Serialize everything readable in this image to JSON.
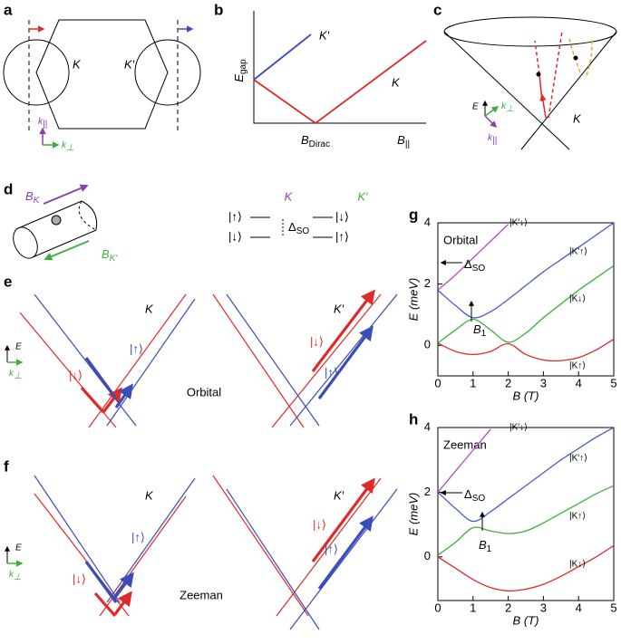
{
  "panels": {
    "a": {
      "letter": "a",
      "K": "K",
      "Kp": "K′",
      "k_par": {
        "main": "k",
        "sub": "||"
      },
      "k_perp": {
        "main": "k",
        "sub": "⊥"
      }
    },
    "b": {
      "letter": "b",
      "ylabel": {
        "main": "E",
        "sub": "gap"
      },
      "Kp": "K′",
      "K": "K",
      "b_dirac": {
        "main": "B",
        "sub": "Dirac"
      },
      "b_par": {
        "main": "B",
        "sub": "||"
      }
    },
    "c": {
      "letter": "c",
      "E": "E",
      "k_perp": {
        "main": "k",
        "sub": "⊥"
      },
      "k_par": {
        "main": "k",
        "sub": "||"
      },
      "K": "K"
    },
    "d": {
      "letter": "d",
      "b_k": {
        "main": "B",
        "sub": "K"
      },
      "b_kp": {
        "main": "B",
        "sub": "K′"
      },
      "K": "K",
      "Kp": "K′",
      "up_left": "|↑⟩",
      "down_left": "|↓⟩",
      "down_right": "|↓⟩",
      "up_right": "|↑⟩",
      "delta": {
        "main": "Δ",
        "sub": "SO"
      }
    },
    "e": {
      "letter": "e",
      "K": "K",
      "Kp": "K′",
      "up_left": "|↑⟩",
      "down_left": "|↓⟩",
      "down_right": "|↓⟩",
      "up_right": "|↑⟩",
      "E": "E",
      "k_perp": {
        "main": "k",
        "sub": "⊥"
      },
      "mode": "Orbital"
    },
    "f": {
      "letter": "f",
      "K": "K",
      "Kp": "K′",
      "up_left": "|↑⟩",
      "down_left": "|↓⟩",
      "down_right": "|↓⟩",
      "up_right": "|↑⟩",
      "E": "E",
      "k_perp": {
        "main": "k",
        "sub": "⊥"
      },
      "mode": "Zeeman"
    }
  },
  "chart_data": [
    {
      "type": "line",
      "panel_label": "g",
      "title": "Orbital",
      "xlabel": "B (T)",
      "ylabel": "E (meV)",
      "x": [
        0,
        0.5,
        1,
        1.5,
        2,
        2.5,
        3,
        3.5,
        4,
        4.5,
        5
      ],
      "xlim": [
        0,
        5
      ],
      "xticks": [
        0,
        1,
        2,
        3,
        4,
        5
      ],
      "ylim": [
        -1,
        4
      ],
      "yticks": [
        0,
        2,
        4
      ],
      "delta_label": {
        "main": "Δ",
        "sub": "SO"
      },
      "b1_label": {
        "main": "B",
        "sub": "1"
      },
      "series": [
        {
          "name": "|K′↓⟩",
          "color": "#b04fb8",
          "values": [
            1.8,
            2.3,
            2.85,
            3.4,
            3.95,
            null,
            null,
            null,
            null,
            null,
            null
          ]
        },
        {
          "name": "|K′↑⟩",
          "color": "#4a5cc8",
          "values": [
            1.8,
            1.3,
            0.9,
            1.1,
            1.5,
            1.95,
            2.4,
            2.8,
            3.2,
            3.6,
            4
          ]
        },
        {
          "name": "|K↓⟩",
          "color": "#3fae3f",
          "values": [
            0.07,
            0.5,
            0.85,
            0.5,
            0.1,
            0.4,
            0.9,
            1.35,
            1.8,
            2.2,
            2.6
          ]
        },
        {
          "name": "|K↑⟩",
          "color": "#e02a2a",
          "values": [
            0.07,
            -0.2,
            -0.3,
            -0.2,
            0.05,
            -0.3,
            -0.48,
            -0.5,
            -0.4,
            -0.15,
            0.2
          ]
        }
      ]
    },
    {
      "type": "line",
      "panel_label": "h",
      "title": "Zeeman",
      "xlabel": "B (T)",
      "ylabel": "E (meV)",
      "x": [
        0,
        0.5,
        1,
        1.5,
        2,
        2.5,
        3,
        3.5,
        4,
        4.5,
        5
      ],
      "xlim": [
        0,
        5
      ],
      "xticks": [
        0,
        1,
        2,
        3,
        4,
        5
      ],
      "ylim": [
        -1.35,
        4
      ],
      "yticks": [
        0,
        2,
        4
      ],
      "delta_label": {
        "main": "Δ",
        "sub": "SO"
      },
      "b1_label": {
        "main": "B",
        "sub": "1"
      },
      "series": [
        {
          "name": "|K′↓⟩",
          "color": "#b04fb8",
          "values": [
            2,
            2.65,
            3.3,
            3.95,
            null,
            null,
            null,
            null,
            null,
            null,
            null
          ]
        },
        {
          "name": "|K′↑⟩",
          "color": "#4a5cc8",
          "values": [
            2,
            1.5,
            1.1,
            1.4,
            1.8,
            2.2,
            2.6,
            3,
            3.35,
            3.7,
            4
          ]
        },
        {
          "name": "|K↑⟩",
          "color": "#3fae3f",
          "values": [
            0.05,
            0.45,
            0.9,
            0.8,
            0.72,
            0.8,
            1.05,
            1.35,
            1.65,
            1.95,
            2.2
          ]
        },
        {
          "name": "|K↓⟩",
          "color": "#e02a2a",
          "values": [
            0,
            -0.35,
            -0.7,
            -0.95,
            -1.05,
            -1,
            -0.85,
            -0.6,
            -0.3,
            0,
            0.35
          ]
        }
      ]
    }
  ]
}
